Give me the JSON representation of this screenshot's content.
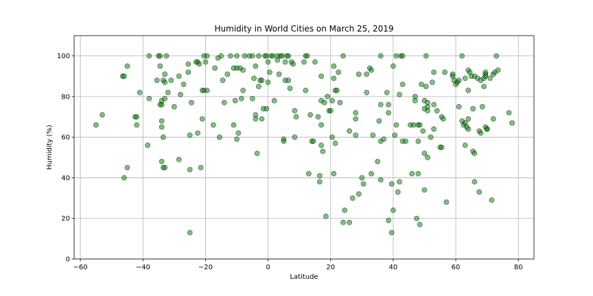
{
  "chart_data": {
    "type": "scatter",
    "title": "Humidity in World Cities on March 25, 2019",
    "xlabel": "Latitude",
    "ylabel": "Humidity (%)",
    "xlim": [
      -62,
      85
    ],
    "ylim": [
      0,
      110
    ],
    "xticks": [
      -60,
      -40,
      -20,
      0,
      20,
      40,
      60,
      80
    ],
    "yticks": [
      0,
      20,
      40,
      60,
      80,
      100
    ],
    "grid": true,
    "marker_color": "#008000",
    "points": [
      [
        -55,
        66
      ],
      [
        -53,
        71
      ],
      [
        -46.5,
        90
      ],
      [
        -46,
        90
      ],
      [
        -46,
        40
      ],
      [
        -45,
        45
      ],
      [
        -45,
        95
      ],
      [
        -42.5,
        70
      ],
      [
        -42,
        70
      ],
      [
        -42,
        66
      ],
      [
        -41,
        82
      ],
      [
        -38.5,
        56
      ],
      [
        -38,
        79
      ],
      [
        -38,
        100
      ],
      [
        -35.5,
        88
      ],
      [
        -35,
        100
      ],
      [
        -34.5,
        100
      ],
      [
        -34.5,
        95
      ],
      [
        -34.5,
        76
      ],
      [
        -34,
        76
      ],
      [
        -34,
        68
      ],
      [
        -34,
        65
      ],
      [
        -34,
        48
      ],
      [
        -34,
        78
      ],
      [
        -33.5,
        60
      ],
      [
        -33.5,
        45
      ],
      [
        -33,
        45
      ],
      [
        -33.5,
        88
      ],
      [
        -33,
        87
      ],
      [
        -33,
        91
      ],
      [
        -33,
        79
      ],
      [
        -32.5,
        100
      ],
      [
        -32,
        82
      ],
      [
        -31,
        88
      ],
      [
        -30,
        75
      ],
      [
        -28.5,
        90
      ],
      [
        -28,
        81
      ],
      [
        -28.5,
        49
      ],
      [
        -27,
        86
      ],
      [
        -25.5,
        96
      ],
      [
        -25.5,
        92
      ],
      [
        -25,
        61
      ],
      [
        -25,
        44
      ],
      [
        -25,
        13
      ],
      [
        -24.5,
        77
      ],
      [
        -23,
        97
      ],
      [
        -22.5,
        97
      ],
      [
        -22.5,
        62
      ],
      [
        -22,
        96
      ],
      [
        -21.5,
        45
      ],
      [
        -21,
        83
      ],
      [
        -21,
        69
      ],
      [
        -20.5,
        100
      ],
      [
        -20.5,
        83
      ],
      [
        -20,
        97
      ],
      [
        -19.5,
        100
      ],
      [
        -19.5,
        83
      ],
      [
        -17.5,
        66
      ],
      [
        -17,
        94
      ],
      [
        -16,
        99
      ],
      [
        -15.5,
        60
      ],
      [
        -15,
        100
      ],
      [
        -14.5,
        88
      ],
      [
        -14,
        77
      ],
      [
        -13,
        91
      ],
      [
        -12,
        100
      ],
      [
        -11,
        66
      ],
      [
        -11,
        94
      ],
      [
        -10.5,
        78
      ],
      [
        -10,
        94
      ],
      [
        -10,
        100
      ],
      [
        -10,
        59
      ],
      [
        -9.5,
        62
      ],
      [
        -9,
        94
      ],
      [
        -8.5,
        79
      ],
      [
        -8,
        93
      ],
      [
        -8,
        83
      ],
      [
        -7.5,
        100
      ],
      [
        -6,
        100
      ],
      [
        -5,
        100
      ],
      [
        -5,
        79
      ],
      [
        -4.5,
        89
      ],
      [
        -4,
        95
      ],
      [
        -4,
        71
      ],
      [
        -4,
        69
      ],
      [
        -3.5,
        52
      ],
      [
        -3,
        85
      ],
      [
        -3,
        100
      ],
      [
        -2.5,
        88
      ],
      [
        -2,
        88
      ],
      [
        -2,
        69
      ],
      [
        -1.5,
        74
      ],
      [
        -1,
        100
      ],
      [
        -0.5,
        100
      ],
      [
        -0.5,
        74
      ],
      [
        0,
        97
      ],
      [
        0,
        87
      ],
      [
        0.5,
        92
      ],
      [
        1,
        100
      ],
      [
        1.5,
        100
      ],
      [
        2,
        78
      ],
      [
        3,
        100
      ],
      [
        3,
        98
      ],
      [
        3.5,
        91
      ],
      [
        4,
        100
      ],
      [
        4.5,
        100
      ],
      [
        5,
        59
      ],
      [
        5,
        58
      ],
      [
        5.5,
        97
      ],
      [
        5.5,
        88
      ],
      [
        6,
        100
      ],
      [
        6.5,
        100
      ],
      [
        6.5,
        88
      ],
      [
        7,
        84
      ],
      [
        7.5,
        97
      ],
      [
        8,
        96
      ],
      [
        8.5,
        60
      ],
      [
        8.5,
        73
      ],
      [
        9,
        70
      ],
      [
        11.5,
        97
      ],
      [
        12,
        83
      ],
      [
        12,
        100
      ],
      [
        12.5,
        100
      ],
      [
        13,
        42
      ],
      [
        13.5,
        71
      ],
      [
        14,
        58
      ],
      [
        14.5,
        58
      ],
      [
        15,
        97
      ],
      [
        16,
        70
      ],
      [
        16.5,
        41
      ],
      [
        16.5,
        38
      ],
      [
        17,
        56
      ],
      [
        17,
        66
      ],
      [
        17,
        90
      ],
      [
        17,
        78
      ],
      [
        17.5,
        53
      ],
      [
        18,
        77
      ],
      [
        18.5,
        21
      ],
      [
        19,
        80
      ],
      [
        19.5,
        73
      ],
      [
        20,
        73
      ],
      [
        20.5,
        78
      ],
      [
        20.5,
        60
      ],
      [
        21,
        89
      ],
      [
        21,
        95
      ],
      [
        21,
        42
      ],
      [
        21.5,
        83
      ],
      [
        21.5,
        57
      ],
      [
        22,
        83
      ],
      [
        22.5,
        92
      ],
      [
        23,
        77
      ],
      [
        24,
        18
      ],
      [
        24,
        100
      ],
      [
        24.5,
        24
      ],
      [
        26,
        18
      ],
      [
        26,
        63
      ],
      [
        27,
        30
      ],
      [
        28,
        61
      ],
      [
        28,
        72
      ],
      [
        28,
        69
      ],
      [
        29,
        91
      ],
      [
        29,
        32
      ],
      [
        30,
        40
      ],
      [
        30.5,
        37
      ],
      [
        31.5,
        91
      ],
      [
        31.5,
        82
      ],
      [
        32.5,
        94
      ],
      [
        33,
        93
      ],
      [
        33,
        42
      ],
      [
        33.5,
        61
      ],
      [
        35,
        48
      ],
      [
        35.5,
        68
      ],
      [
        36,
        39
      ],
      [
        36,
        58
      ],
      [
        36,
        76
      ],
      [
        36,
        100
      ],
      [
        37,
        59
      ],
      [
        38,
        82
      ],
      [
        38.5,
        76
      ],
      [
        38.5,
        72
      ],
      [
        38.5,
        19
      ],
      [
        39.5,
        13
      ],
      [
        39.5,
        37
      ],
      [
        40,
        24
      ],
      [
        40,
        95
      ],
      [
        40.5,
        61
      ],
      [
        41,
        66
      ],
      [
        41,
        100
      ],
      [
        41.5,
        33
      ],
      [
        42,
        81
      ],
      [
        42,
        38
      ],
      [
        42.5,
        100
      ],
      [
        43,
        58
      ],
      [
        43,
        86
      ],
      [
        43,
        100
      ],
      [
        44,
        58
      ],
      [
        45.5,
        66
      ],
      [
        46,
        42
      ],
      [
        46.5,
        66
      ],
      [
        47,
        80
      ],
      [
        47,
        78
      ],
      [
        47.5,
        20
      ],
      [
        48,
        66
      ],
      [
        48,
        58
      ],
      [
        48,
        42
      ],
      [
        48.5,
        66
      ],
      [
        48.5,
        17
      ],
      [
        49,
        86
      ],
      [
        49.5,
        63
      ],
      [
        50,
        74
      ],
      [
        50,
        78
      ],
      [
        50,
        52
      ],
      [
        50,
        34
      ],
      [
        50.5,
        100
      ],
      [
        50.5,
        85
      ],
      [
        51,
        77
      ],
      [
        51,
        50
      ],
      [
        51,
        75
      ],
      [
        51,
        73
      ],
      [
        52,
        60
      ],
      [
        52.5,
        87
      ],
      [
        53,
        64
      ],
      [
        53,
        76
      ],
      [
        53,
        92
      ],
      [
        54,
        73
      ],
      [
        55,
        55
      ],
      [
        55.5,
        70
      ],
      [
        55.5,
        55
      ],
      [
        56,
        69
      ],
      [
        56.5,
        92
      ],
      [
        57,
        28
      ],
      [
        59,
        91
      ],
      [
        59,
        90
      ],
      [
        59.5,
        88
      ],
      [
        60,
        86
      ],
      [
        60.5,
        87
      ],
      [
        61,
        75
      ],
      [
        61,
        88
      ],
      [
        62,
        100
      ],
      [
        62,
        68
      ],
      [
        62.5,
        66
      ],
      [
        63,
        67
      ],
      [
        63,
        56
      ],
      [
        63,
        89
      ],
      [
        63.5,
        65
      ],
      [
        64,
        93
      ],
      [
        64,
        69
      ],
      [
        64,
        64
      ],
      [
        64,
        83
      ],
      [
        64.5,
        92
      ],
      [
        65,
        90
      ],
      [
        65.5,
        74
      ],
      [
        65.5,
        53
      ],
      [
        66,
        52
      ],
      [
        66,
        38
      ],
      [
        66,
        90
      ],
      [
        67,
        89
      ],
      [
        67.5,
        33
      ],
      [
        67.5,
        63
      ],
      [
        68,
        62
      ],
      [
        68,
        88
      ],
      [
        68.5,
        75
      ],
      [
        69,
        89
      ],
      [
        69,
        85
      ],
      [
        69.5,
        65
      ],
      [
        69.5,
        91
      ],
      [
        69.5,
        92
      ],
      [
        69.5,
        90
      ],
      [
        70,
        64
      ],
      [
        70,
        64
      ],
      [
        71,
        89
      ],
      [
        71.5,
        29
      ],
      [
        72,
        91
      ],
      [
        72,
        69
      ],
      [
        72.5,
        92
      ],
      [
        73,
        100
      ],
      [
        73.5,
        93
      ],
      [
        77,
        72
      ],
      [
        78,
        67
      ]
    ]
  }
}
